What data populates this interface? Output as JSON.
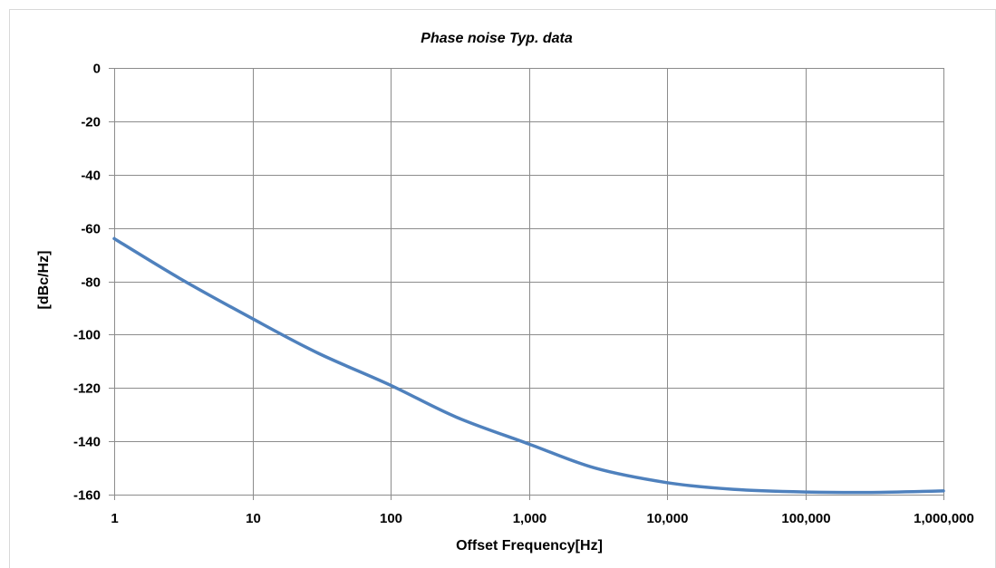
{
  "chart_data": {
    "type": "line",
    "title": "Phase noise Typ. data",
    "xlabel": "Offset Frequency[Hz]",
    "ylabel": "[dBc/Hz]",
    "x_scale": "log",
    "xlim": [
      1,
      1000000
    ],
    "ylim": [
      -160,
      0
    ],
    "grid": true,
    "legend": "none",
    "x_ticks": [
      1,
      10,
      100,
      1000,
      10000,
      100000,
      1000000
    ],
    "x_tick_labels": [
      "1",
      "10",
      "100",
      "1,000",
      "10,000",
      "100,000",
      "1,000,000"
    ],
    "y_ticks": [
      0,
      -20,
      -40,
      -60,
      -80,
      -100,
      -120,
      -140,
      -160
    ],
    "y_tick_labels": [
      "0",
      "-20",
      "-40",
      "-60",
      "-80",
      "-100",
      "-120",
      "-140",
      "-160"
    ],
    "series": [
      {
        "color": "#4f81bd",
        "points": [
          {
            "x": 1,
            "y": -64
          },
          {
            "x": 3,
            "y": -79
          },
          {
            "x": 10,
            "y": -94
          },
          {
            "x": 30,
            "y": -107
          },
          {
            "x": 100,
            "y": -119
          },
          {
            "x": 300,
            "y": -131
          },
          {
            "x": 1000,
            "y": -141
          },
          {
            "x": 3000,
            "y": -150
          },
          {
            "x": 10000,
            "y": -155.5
          },
          {
            "x": 30000,
            "y": -158
          },
          {
            "x": 100000,
            "y": -159
          },
          {
            "x": 300000,
            "y": -159.2
          },
          {
            "x": 1000000,
            "y": -158.6
          }
        ]
      }
    ]
  }
}
